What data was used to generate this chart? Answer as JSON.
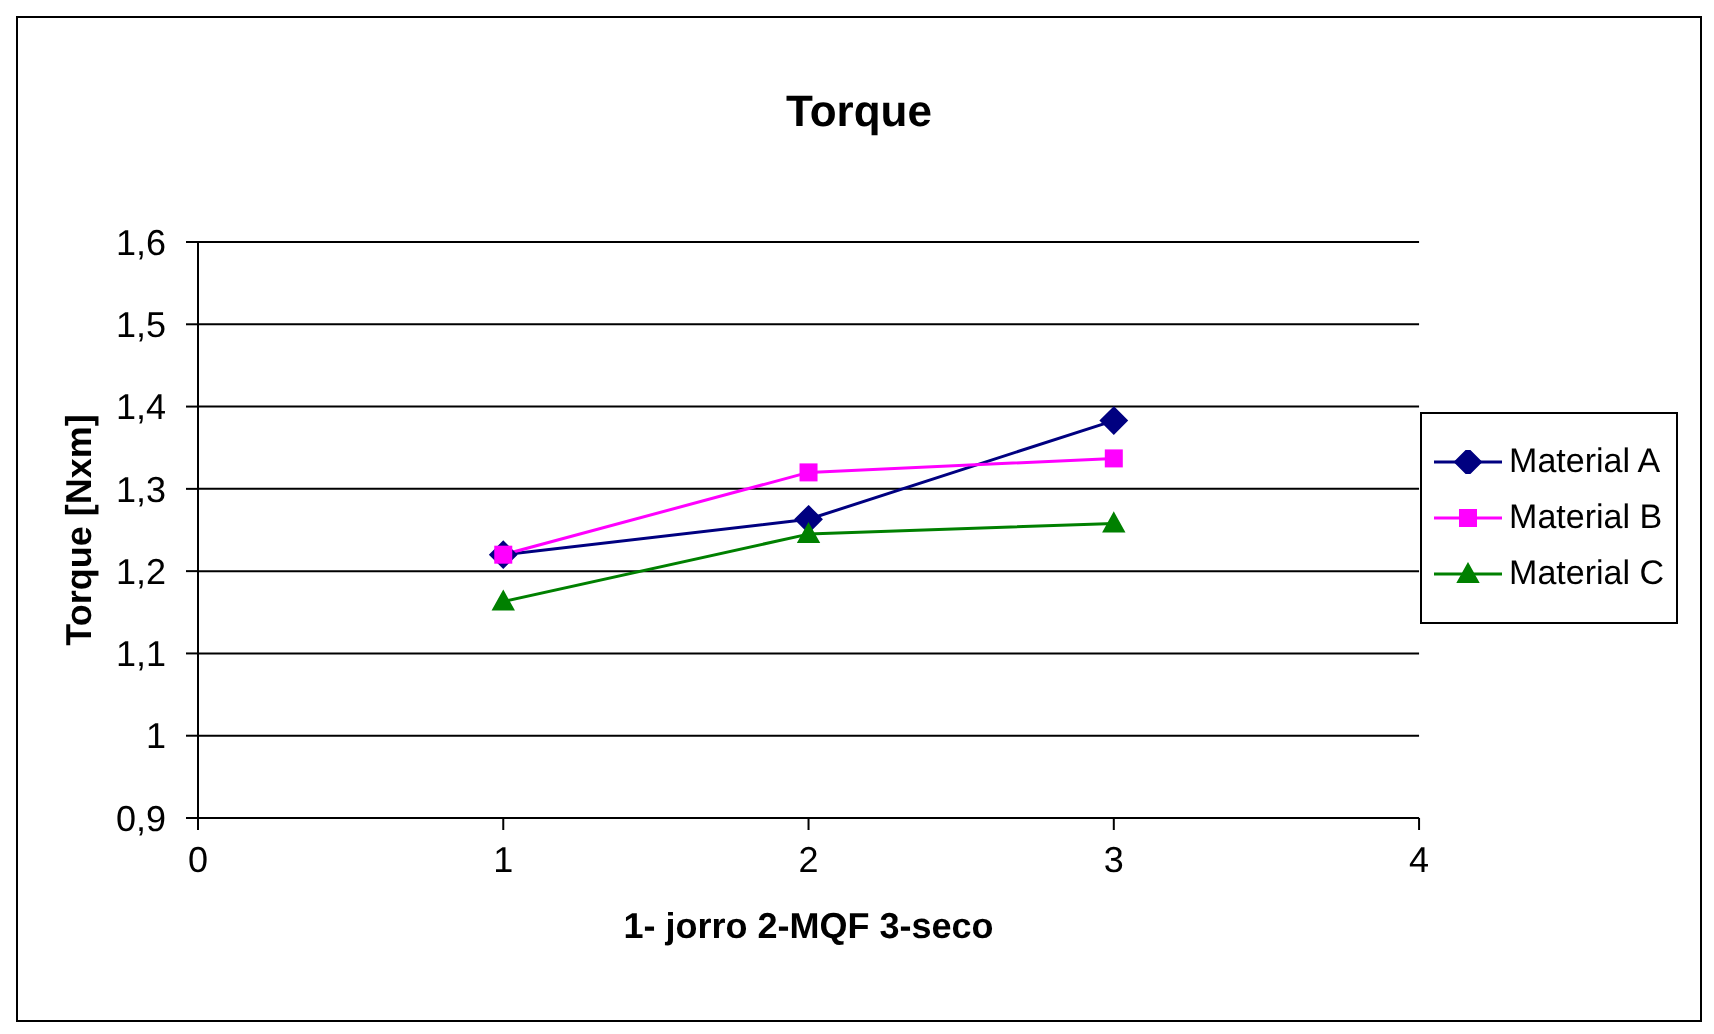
{
  "chart_data": {
    "type": "line",
    "title": "Torque",
    "xlabel": "1- jorro 2-MQF 3-seco",
    "ylabel": "Torque [Nxm]",
    "x": [
      1,
      2,
      3
    ],
    "series": [
      {
        "name": "Material A",
        "color": "#000080",
        "marker": "diamond",
        "values": [
          1.22,
          1.263,
          1.383
        ]
      },
      {
        "name": "Material B",
        "color": "#ff00ff",
        "marker": "square",
        "values": [
          1.22,
          1.32,
          1.337
        ]
      },
      {
        "name": "Material C",
        "color": "#008000",
        "marker": "triangle",
        "values": [
          1.163,
          1.245,
          1.258
        ]
      }
    ],
    "xlim": [
      0,
      4
    ],
    "xticks": [
      0,
      1,
      2,
      3,
      4
    ],
    "ylim": [
      0.9,
      1.6
    ],
    "yticks": [
      {
        "value": 0.9,
        "label": "0,9"
      },
      1,
      {
        "value": 1.1,
        "label": "1,1"
      },
      {
        "value": 1.2,
        "label": "1,2"
      },
      {
        "value": 1.3,
        "label": "1,3"
      },
      {
        "value": 1.4,
        "label": "1,4"
      },
      {
        "value": 1.5,
        "label": "1,5"
      },
      {
        "value": 1.6,
        "label": "1,6"
      }
    ],
    "grid": "y",
    "legend": "right",
    "line_style": "solid"
  }
}
